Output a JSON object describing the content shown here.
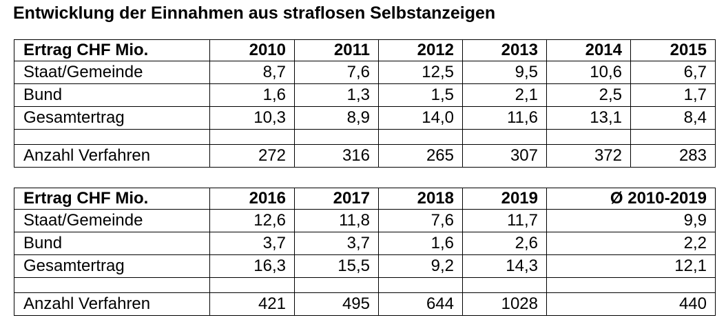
{
  "title": "Entwicklung der Einnahmen aus straflosen Selbstanzeigen",
  "table1": {
    "header": [
      "Ertrag CHF Mio.",
      "2010",
      "2011",
      "2012",
      "2013",
      "2014",
      "2015"
    ],
    "rows": [
      [
        "Staat/Gemeinde",
        "8,7",
        "7,6",
        "12,5",
        "9,5",
        "10,6",
        "6,7"
      ],
      [
        "Bund",
        "1,6",
        "1,3",
        "1,5",
        "2,1",
        "2,5",
        "1,7"
      ],
      [
        "Gesamtertrag",
        "10,3",
        "8,9",
        "14,0",
        "11,6",
        "13,1",
        "8,4"
      ],
      [
        "",
        "",
        "",
        "",
        "",
        "",
        ""
      ],
      [
        "Anzahl Verfahren",
        "272",
        "316",
        "265",
        "307",
        "372",
        "283"
      ]
    ]
  },
  "table2": {
    "header": [
      "Ertrag CHF Mio.",
      "2016",
      "2017",
      "2018",
      "2019",
      "Ø 2010-2019"
    ],
    "rows": [
      [
        "Staat/Gemeinde",
        "12,6",
        "11,8",
        "7,6",
        "11,7",
        "9,9"
      ],
      [
        "Bund",
        "3,7",
        "3,7",
        "1,6",
        "2,6",
        "2,2"
      ],
      [
        "Gesamtertrag",
        "16,3",
        "15,5",
        "9,2",
        "14,3",
        "12,1"
      ],
      [
        "",
        "",
        "",
        "",
        "",
        ""
      ],
      [
        "Anzahl Verfahren",
        "421",
        "495",
        "644",
        "1028",
        "440"
      ]
    ]
  }
}
